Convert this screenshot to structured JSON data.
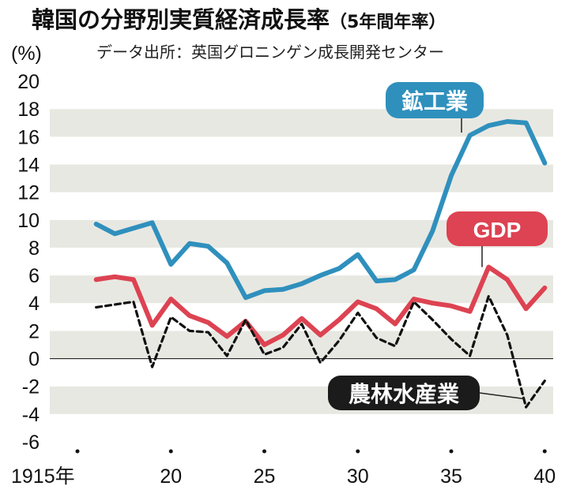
{
  "chart_data": {
    "type": "line",
    "title": "韓国の分野別実質経済成長率",
    "title_suffix": "（5年間年率）",
    "subtitle": "データ出所：英国グロニンゲン成長開発センター",
    "ylabel": "(%)",
    "xlabel": "",
    "ylim": [
      -6,
      20
    ],
    "xlim": [
      1915,
      1940
    ],
    "y_ticks": [
      "20",
      "18",
      "16",
      "14",
      "12",
      "10",
      "8",
      "6",
      "4",
      "2",
      "0",
      "-2",
      "-4",
      "-6"
    ],
    "x_ticks": [
      {
        "value": 1915,
        "label": "1915年"
      },
      {
        "value": 1920,
        "label": "20"
      },
      {
        "value": 1925,
        "label": "25"
      },
      {
        "value": 1930,
        "label": "30"
      },
      {
        "value": 1935,
        "label": "35"
      },
      {
        "value": 1940,
        "label": "40"
      }
    ],
    "grid": "alternating horizontal bands",
    "series": [
      {
        "name": "鉱工業",
        "color": "#2f90bd",
        "style": "solid",
        "x": [
          1916,
          1917,
          1918,
          1919,
          1920,
          1921,
          1922,
          1923,
          1924,
          1925,
          1926,
          1927,
          1928,
          1929,
          1930,
          1931,
          1932,
          1933,
          1934,
          1935,
          1936,
          1937,
          1938,
          1939,
          1940
        ],
        "values": [
          9.7,
          9.0,
          9.4,
          9.8,
          6.8,
          8.3,
          8.1,
          6.9,
          4.4,
          4.9,
          5.0,
          5.4,
          6.0,
          6.5,
          7.5,
          5.6,
          5.7,
          6.4,
          9.2,
          13.2,
          16.1,
          16.8,
          17.1,
          17.0,
          14.1
        ]
      },
      {
        "name": "GDP",
        "color": "#dd4352",
        "style": "solid",
        "x": [
          1916,
          1917,
          1918,
          1919,
          1920,
          1921,
          1922,
          1923,
          1924,
          1925,
          1926,
          1927,
          1928,
          1929,
          1930,
          1931,
          1932,
          1933,
          1934,
          1935,
          1936,
          1937,
          1938,
          1939,
          1940
        ],
        "values": [
          5.7,
          5.9,
          5.7,
          2.4,
          4.3,
          3.1,
          2.6,
          1.6,
          2.7,
          1.0,
          1.7,
          2.9,
          1.7,
          2.8,
          4.1,
          3.6,
          2.5,
          4.3,
          4.0,
          3.8,
          3.4,
          6.6,
          5.7,
          3.6,
          5.1
        ]
      },
      {
        "name": "農林水産業",
        "color": "#111111",
        "style": "dashed",
        "x": [
          1916,
          1917,
          1918,
          1919,
          1920,
          1921,
          1922,
          1923,
          1924,
          1925,
          1926,
          1927,
          1928,
          1929,
          1930,
          1931,
          1932,
          1933,
          1934,
          1935,
          1936,
          1937,
          1938,
          1939,
          1940
        ],
        "values": [
          3.7,
          3.9,
          4.1,
          -0.6,
          3.0,
          2.0,
          1.9,
          0.2,
          2.8,
          0.3,
          0.8,
          2.5,
          -0.3,
          1.3,
          3.3,
          1.5,
          0.9,
          4.1,
          2.8,
          1.4,
          0.2,
          4.5,
          1.7,
          -3.5,
          -1.6
        ]
      }
    ]
  }
}
